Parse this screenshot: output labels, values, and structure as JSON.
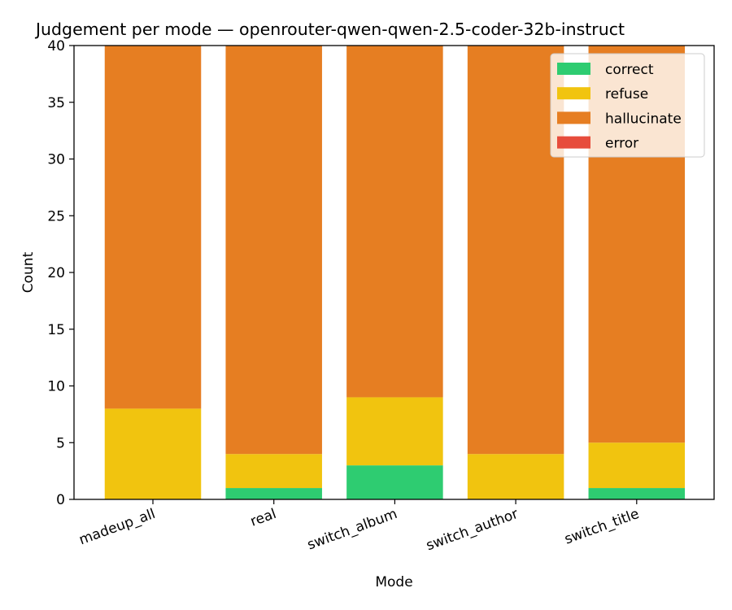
{
  "chart_data": {
    "type": "bar",
    "stacked": true,
    "title": "Judgement per mode — openrouter-qwen-qwen-2.5-coder-32b-instruct",
    "xlabel": "Mode",
    "ylabel": "Count",
    "categories": [
      "madeup_all",
      "real",
      "switch_album",
      "switch_author",
      "switch_title"
    ],
    "ylim": [
      0,
      40
    ],
    "yticks": [
      0,
      5,
      10,
      15,
      20,
      25,
      30,
      35,
      40
    ],
    "grid": false,
    "legend_position": "top-right",
    "series": [
      {
        "name": "correct",
        "color": "#2ecc71",
        "values": [
          0,
          1,
          3,
          0,
          1
        ]
      },
      {
        "name": "refuse",
        "color": "#f1c40f",
        "values": [
          8,
          3,
          6,
          4,
          4
        ]
      },
      {
        "name": "hallucinate",
        "color": "#e67e22",
        "values": [
          32,
          36,
          31,
          36,
          35
        ]
      },
      {
        "name": "error",
        "color": "#e74c3c",
        "values": [
          0,
          0,
          0,
          0,
          0
        ]
      }
    ]
  }
}
